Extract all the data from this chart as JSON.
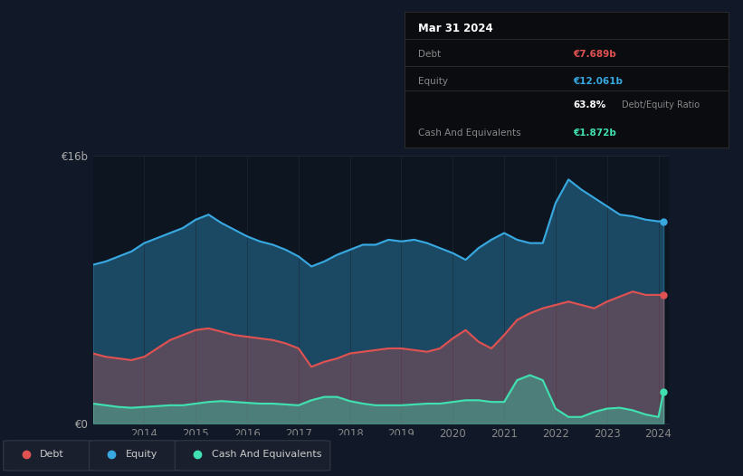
{
  "bg_color": "#111827",
  "chart_bg_color": "#0d1520",
  "title_text": "Mar 31 2024",
  "debt_color": "#e05252",
  "equity_color": "#38a8e0",
  "cash_color": "#40e0b0",
  "ylim": [
    0,
    16
  ],
  "grid_color": "#1e2a3a",
  "years": [
    2013.0,
    2013.25,
    2013.5,
    2013.75,
    2014.0,
    2014.25,
    2014.5,
    2014.75,
    2015.0,
    2015.25,
    2015.5,
    2015.75,
    2016.0,
    2016.25,
    2016.5,
    2016.75,
    2017.0,
    2017.25,
    2017.5,
    2017.75,
    2018.0,
    2018.25,
    2018.5,
    2018.75,
    2019.0,
    2019.25,
    2019.5,
    2019.75,
    2020.0,
    2020.25,
    2020.5,
    2020.75,
    2021.0,
    2021.25,
    2021.5,
    2021.75,
    2022.0,
    2022.25,
    2022.5,
    2022.75,
    2023.0,
    2023.25,
    2023.5,
    2023.75,
    2024.0,
    2024.1
  ],
  "equity": [
    9.5,
    9.7,
    10.0,
    10.3,
    10.8,
    11.1,
    11.4,
    11.7,
    12.2,
    12.5,
    12.0,
    11.6,
    11.2,
    10.9,
    10.7,
    10.4,
    10.0,
    9.4,
    9.7,
    10.1,
    10.4,
    10.7,
    10.7,
    11.0,
    10.9,
    11.0,
    10.8,
    10.5,
    10.2,
    9.8,
    10.5,
    11.0,
    11.4,
    11.0,
    10.8,
    10.8,
    13.2,
    14.6,
    14.0,
    13.5,
    13.0,
    12.5,
    12.4,
    12.2,
    12.1,
    12.1
  ],
  "debt": [
    4.2,
    4.0,
    3.9,
    3.8,
    4.0,
    4.5,
    5.0,
    5.3,
    5.6,
    5.7,
    5.5,
    5.3,
    5.2,
    5.1,
    5.0,
    4.8,
    4.5,
    3.4,
    3.7,
    3.9,
    4.2,
    4.3,
    4.4,
    4.5,
    4.5,
    4.4,
    4.3,
    4.5,
    5.1,
    5.6,
    4.9,
    4.5,
    5.3,
    6.2,
    6.6,
    6.9,
    7.1,
    7.3,
    7.1,
    6.9,
    7.3,
    7.6,
    7.9,
    7.7,
    7.7,
    7.7
  ],
  "cash": [
    1.2,
    1.1,
    1.0,
    0.95,
    1.0,
    1.05,
    1.1,
    1.1,
    1.2,
    1.3,
    1.35,
    1.3,
    1.25,
    1.2,
    1.2,
    1.15,
    1.1,
    1.4,
    1.6,
    1.6,
    1.35,
    1.2,
    1.1,
    1.1,
    1.1,
    1.15,
    1.2,
    1.2,
    1.3,
    1.4,
    1.4,
    1.3,
    1.3,
    2.6,
    2.9,
    2.6,
    0.9,
    0.4,
    0.4,
    0.7,
    0.9,
    0.95,
    0.8,
    0.55,
    0.4,
    1.9
  ],
  "legend_items": [
    "Debt",
    "Equity",
    "Cash And Equivalents"
  ],
  "legend_colors": [
    "#e05252",
    "#38a8e0",
    "#40e0b0"
  ],
  "tooltip": {
    "title": "Mar 31 2024",
    "rows": [
      {
        "label": "Debt",
        "value": "€7.689b",
        "value_color": "#e05252",
        "divider_above": true
      },
      {
        "label": "Equity",
        "value": "€12.061b",
        "value_color": "#38a8e0",
        "divider_above": true
      },
      {
        "label": "",
        "value": "63.8% Debt/Equity Ratio",
        "value_color": null,
        "divider_above": false
      },
      {
        "label": "Cash And Equivalents",
        "value": "€1.872b",
        "value_color": "#40e0b0",
        "divider_above": true
      }
    ]
  }
}
